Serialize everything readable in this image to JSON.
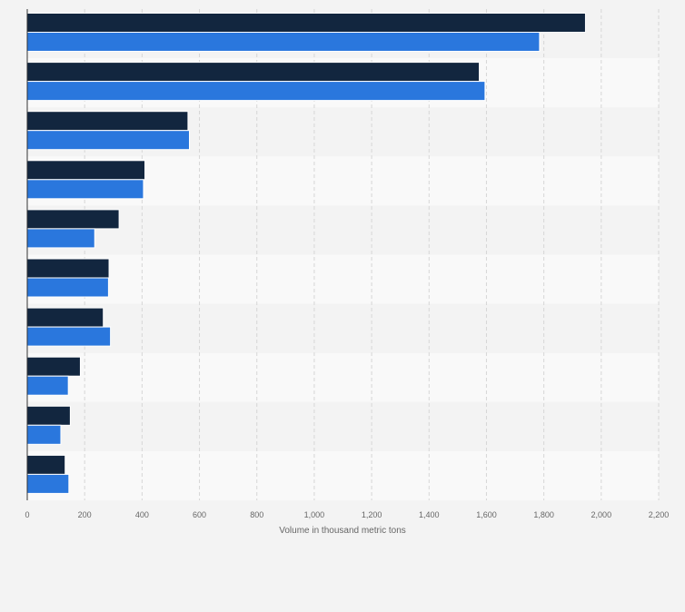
{
  "chart_data": {
    "type": "bar",
    "orientation": "horizontal",
    "xlabel": "Volume in thousand metric tons",
    "ylabel": "",
    "xlim": [
      0,
      2200
    ],
    "x_ticks": [
      0,
      200,
      400,
      600,
      800,
      1000,
      1200,
      1400,
      1600,
      1800,
      2000,
      2200
    ],
    "x_tick_labels": [
      "0",
      "200",
      "400",
      "600",
      "800",
      "1,000",
      "1,200",
      "1,400",
      "1,600",
      "1,800",
      "2,000",
      "2,200"
    ],
    "categories": [
      "",
      "",
      "",
      "",
      "",
      "",
      "",
      "",
      "",
      ""
    ],
    "series": [
      {
        "values": [
          1945,
          1575,
          560,
          410,
          320,
          285,
          265,
          185,
          150,
          132
        ]
      },
      {
        "values": [
          1785,
          1595,
          565,
          405,
          235,
          283,
          290,
          143,
          117,
          145
        ]
      }
    ],
    "colors": [
      "#12263f",
      "#2a77dd"
    ],
    "grid": true,
    "legend": "none"
  }
}
